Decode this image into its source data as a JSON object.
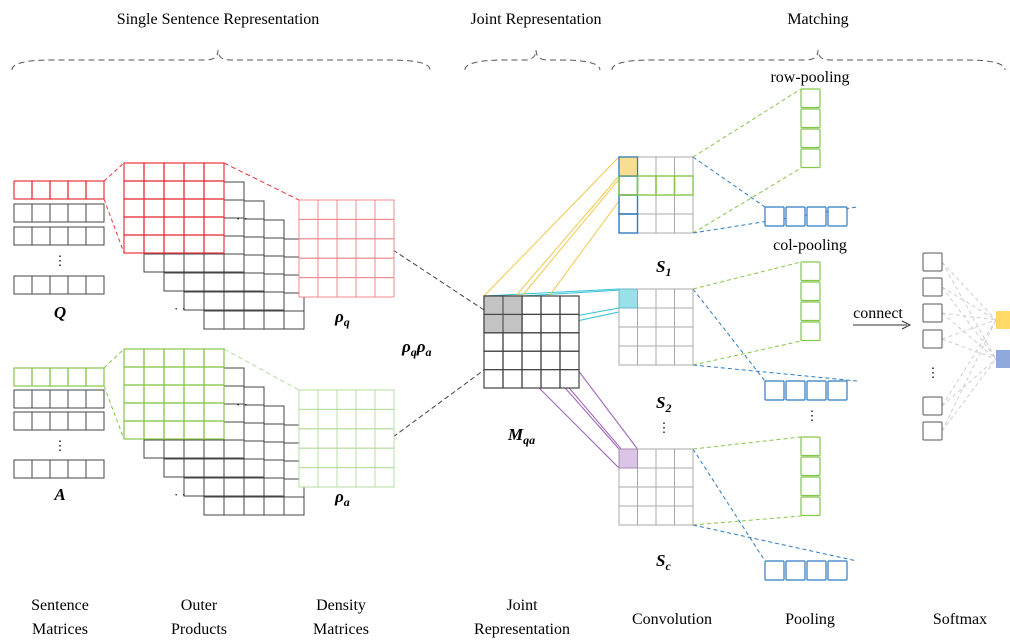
{
  "headers": {
    "single": "Single Sentence Representation",
    "joint": "Joint Representation",
    "matching": "Matching"
  },
  "labels": {
    "row_pooling": "row-pooling",
    "col_pooling": "col-pooling",
    "connect": "connect",
    "dots": "⋮"
  },
  "symbols": {
    "q": {
      "base": "Q",
      "sub": ""
    },
    "a": {
      "base": "A",
      "sub": ""
    },
    "rho_q": {
      "base": "ρ",
      "sub": "q"
    },
    "rho_a": {
      "base": "ρ",
      "sub": "a"
    },
    "rho_q_rho_a": {
      "base1": "ρ",
      "sub1": "q",
      "base2": "ρ",
      "sub2": "a"
    },
    "m_qa": {
      "base": "M",
      "sub": "qa"
    },
    "s1": {
      "base": "S",
      "sub": "1"
    },
    "s2": {
      "base": "S",
      "sub": "2"
    },
    "sc": {
      "base": "S",
      "sub": "c"
    }
  },
  "footer": {
    "sentence": [
      "Sentence",
      "Matrices"
    ],
    "outer": [
      "Outer",
      "Products"
    ],
    "density": [
      "Density",
      "Matrices"
    ],
    "joint": [
      "Joint",
      "Representation"
    ],
    "convolution": "Convolution",
    "pooling": "Pooling",
    "softmax": "Softmax"
  },
  "colors": {
    "red": "#e8353b",
    "lightred": "#f08a8e",
    "green": "#86c64a",
    "lightgreen": "#b5dca0",
    "gray": "#444444",
    "lightgray": "#a9a9a9",
    "blue": "#2f7cc0",
    "yellow": "#f2c94c",
    "cyan": "#35c3d6",
    "purple": "#9b59b6",
    "output_yellow": "#ffd966",
    "output_blue": "#8fa9dc"
  }
}
